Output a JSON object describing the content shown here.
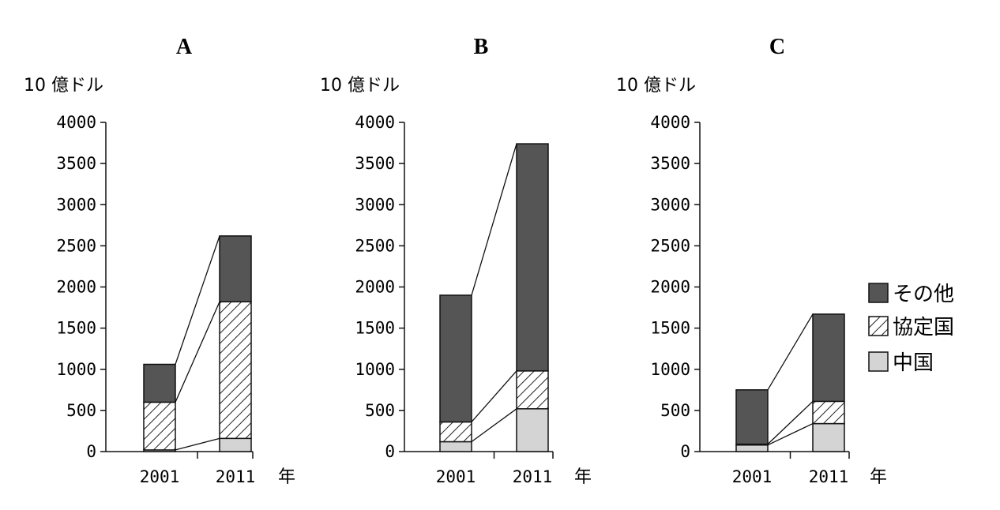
{
  "colors": {
    "other": "#555555",
    "agreement_fill": "#ffffff",
    "agreement_hatch": "#222222",
    "china": "#d4d4d4",
    "axis": "#111111"
  },
  "legend": [
    {
      "key": "other",
      "label": "その他",
      "swatch": "dark-fill"
    },
    {
      "key": "agreement",
      "label": "協定国",
      "swatch": "diagonal-hatch"
    },
    {
      "key": "china",
      "label": "中国",
      "swatch": "light-fill"
    }
  ],
  "chart_data": [
    {
      "type": "bar",
      "stacked": true,
      "title": "A",
      "ylabel": "10 億ドル",
      "xunit": "年",
      "ylim": [
        0,
        4000
      ],
      "yticks": [
        0,
        500,
        1000,
        1500,
        2000,
        2500,
        3000,
        3500,
        4000
      ],
      "categories": [
        "2001",
        "2011"
      ],
      "series": [
        {
          "key": "china",
          "name": "中国",
          "values": [
            20,
            160
          ]
        },
        {
          "key": "agreement",
          "name": "協定国",
          "values": [
            580,
            1660
          ]
        },
        {
          "key": "other",
          "name": "その他",
          "values": [
            460,
            800
          ]
        }
      ]
    },
    {
      "type": "bar",
      "stacked": true,
      "title": "B",
      "ylabel": "10 億ドル",
      "xunit": "年",
      "ylim": [
        0,
        4000
      ],
      "yticks": [
        0,
        500,
        1000,
        1500,
        2000,
        2500,
        3000,
        3500,
        4000
      ],
      "categories": [
        "2001",
        "2011"
      ],
      "series": [
        {
          "key": "china",
          "name": "中国",
          "values": [
            120,
            520
          ]
        },
        {
          "key": "agreement",
          "name": "協定国",
          "values": [
            240,
            460
          ]
        },
        {
          "key": "other",
          "name": "その他",
          "values": [
            1540,
            2760
          ]
        }
      ]
    },
    {
      "type": "bar",
      "stacked": true,
      "title": "C",
      "ylabel": "10 億ドル",
      "xunit": "年",
      "ylim": [
        0,
        4000
      ],
      "yticks": [
        0,
        500,
        1000,
        1500,
        2000,
        2500,
        3000,
        3500,
        4000
      ],
      "categories": [
        "2001",
        "2011"
      ],
      "series": [
        {
          "key": "china",
          "name": "中国",
          "values": [
            80,
            340
          ]
        },
        {
          "key": "agreement",
          "name": "協定国",
          "values": [
            10,
            270
          ]
        },
        {
          "key": "other",
          "name": "その他",
          "values": [
            660,
            1060
          ]
        }
      ]
    }
  ]
}
